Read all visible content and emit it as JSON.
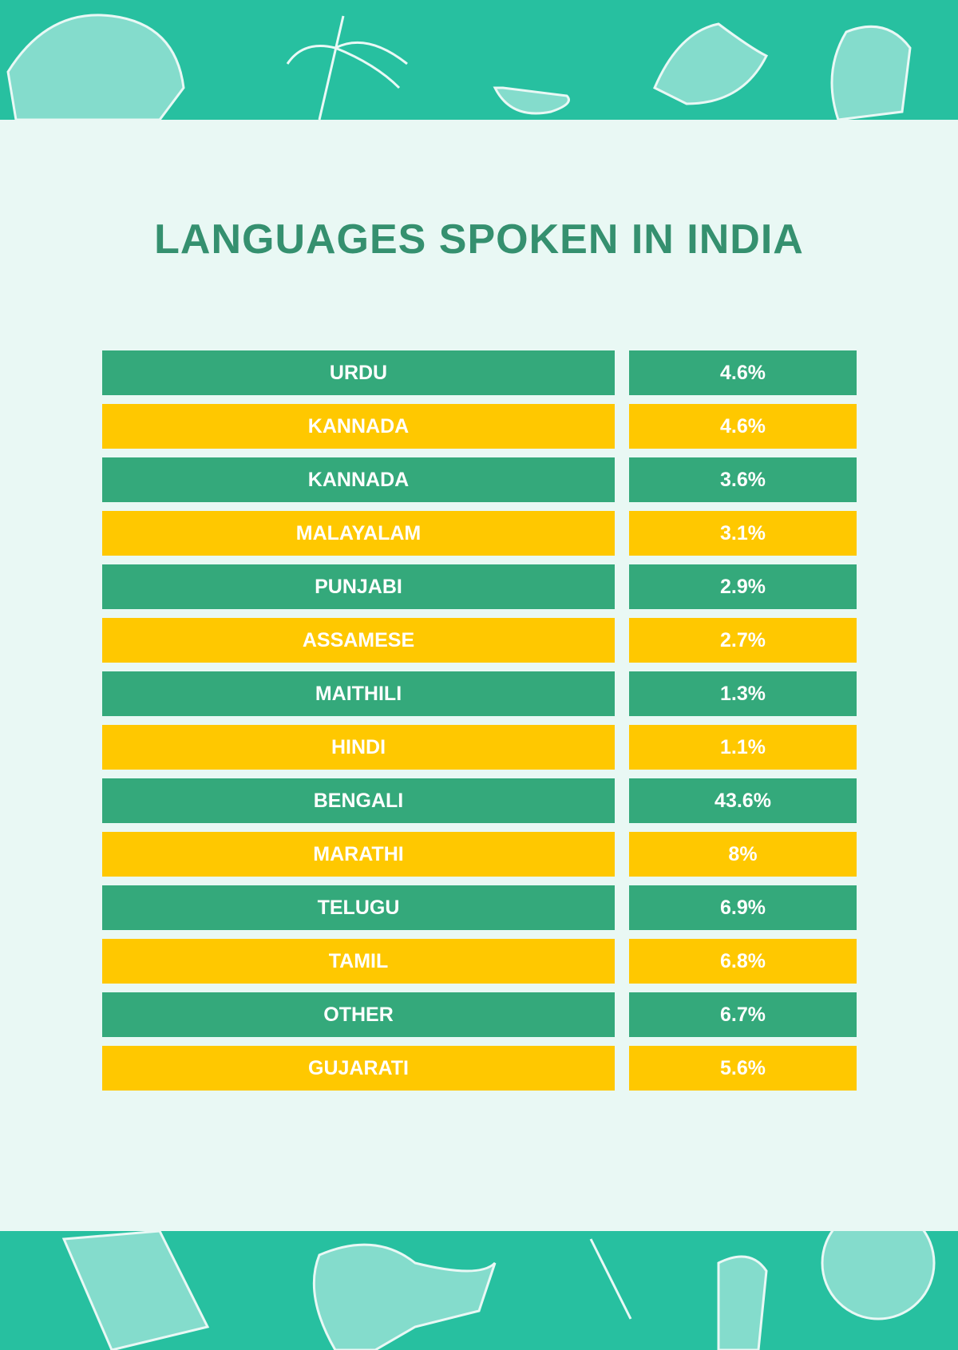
{
  "title": "LANGUAGES SPOKEN IN INDIA",
  "table": {
    "rows": [
      [
        "URDU",
        "4.6%"
      ],
      [
        "KANNADA",
        "4.6%"
      ],
      [
        "KANNADA",
        "3.6%"
      ],
      [
        "MALAYALAM",
        "3.1%"
      ],
      [
        "PUNJABI",
        "2.9%"
      ],
      [
        "ASSAMESE",
        "2.7%"
      ],
      [
        "MAITHILI",
        "1.3%"
      ],
      [
        "HINDI",
        "1.1%"
      ],
      [
        "BENGALI",
        "43.6%"
      ],
      [
        "MARATHI",
        "8%"
      ],
      [
        "TELUGU",
        "6.9%"
      ],
      [
        "TAMIL",
        "6.8%"
      ],
      [
        "OTHER",
        "6.7%"
      ],
      [
        "GUJARATI",
        "5.6%"
      ]
    ]
  }
}
